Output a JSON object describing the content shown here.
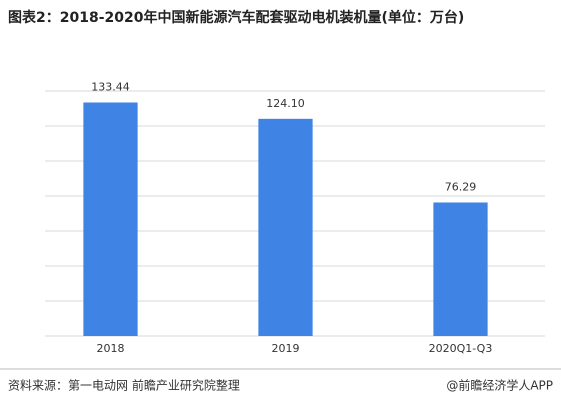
{
  "chart_data": {
    "type": "bar",
    "title": "图表2：2018-2020年中国新能源汽车配套驱动电机装机量(单位：万台)",
    "categories": [
      "2018",
      "2019",
      "2020Q1-Q3"
    ],
    "values": [
      133.44,
      124.1,
      76.29
    ],
    "value_labels": [
      "133.44",
      "124.10",
      "76.29"
    ],
    "color": "#3f84e5",
    "ylim": [
      0,
      140
    ],
    "yticks": [
      0,
      20,
      40,
      60,
      80,
      100,
      120,
      140
    ],
    "grid": true,
    "source": "资料来源：第一电动网 前瞻产业研究院整理",
    "credit": "@前瞻经济学人APP"
  }
}
